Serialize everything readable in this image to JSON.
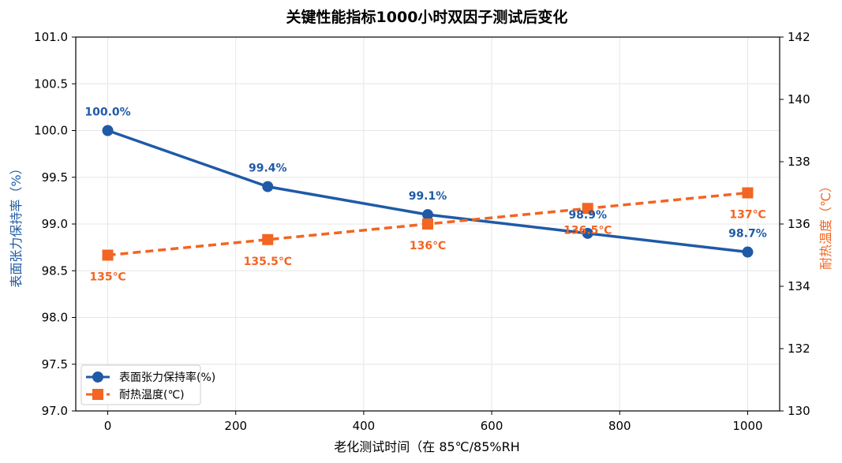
{
  "colors": {
    "tension": "#1f5aa6",
    "temp": "#f26522",
    "grid": "#e6e6e6"
  },
  "chart_data": {
    "type": "line",
    "title": "关键性能指标1000小时双因子测试后变化",
    "xlabel": "老化测试时间（在 85℃/85%RH",
    "ylabel_left": "表面张力保持率（%）",
    "ylabel_right": "耐热温度（℃）",
    "xlim": [
      -50,
      1050
    ],
    "ylim_left": [
      97.0,
      101.0
    ],
    "ylim_right": [
      130,
      142
    ],
    "x_ticks": [
      "0",
      "200",
      "400",
      "600",
      "800",
      "1000"
    ],
    "y_ticks_left": [
      "97.0",
      "97.5",
      "98.0",
      "98.5",
      "99.0",
      "99.5",
      "100.0",
      "100.5",
      "101.0"
    ],
    "y_ticks_right": [
      "130",
      "132",
      "134",
      "136",
      "138",
      "140",
      "142"
    ],
    "grid": true,
    "legend_position": "lower-left",
    "x": [
      0,
      250,
      500,
      750,
      1000
    ],
    "series": [
      {
        "name": "表面张力保持率(%)",
        "axis": "left",
        "values": [
          100.0,
          99.4,
          99.1,
          98.9,
          98.7
        ],
        "labels": [
          "100.0%",
          "99.4%",
          "99.1%",
          "98.9%",
          "98.7%"
        ]
      },
      {
        "name": "耐热温度(℃)",
        "axis": "right",
        "values": [
          135,
          135.5,
          136,
          136.5,
          137
        ],
        "labels": [
          "135℃",
          "135.5℃",
          "136℃",
          "136.5℃",
          "137℃"
        ]
      }
    ]
  }
}
